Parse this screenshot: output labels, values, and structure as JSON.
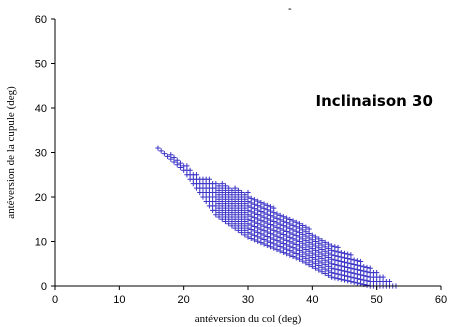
{
  "chart_data": {
    "type": "scatter",
    "title": "",
    "xlabel": "antéversion du col (deg)",
    "ylabel": "antéversion de la cupule (deg)",
    "annotation": "Inclinaison 30",
    "xlim": [
      0,
      60
    ],
    "ylim": [
      0,
      60
    ],
    "xticks": [
      "0",
      "10",
      "20",
      "30",
      "40",
      "50",
      "60"
    ],
    "yticks": [
      "0",
      "10",
      "20",
      "30",
      "40",
      "50",
      "60"
    ],
    "grid": false,
    "marker_color": "#3b34c7",
    "region": {
      "description": "band of plus markers",
      "upper_edge": [
        [
          16,
          31
        ],
        [
          19,
          29
        ],
        [
          22,
          25
        ],
        [
          30,
          21
        ],
        [
          37,
          15
        ],
        [
          45,
          8
        ],
        [
          51,
          2
        ],
        [
          53,
          0
        ]
      ],
      "lower_edge": [
        [
          16,
          31
        ],
        [
          20,
          26
        ],
        [
          25,
          16
        ],
        [
          30,
          11
        ],
        [
          38,
          6
        ],
        [
          43,
          2
        ],
        [
          49,
          0
        ]
      ]
    }
  }
}
